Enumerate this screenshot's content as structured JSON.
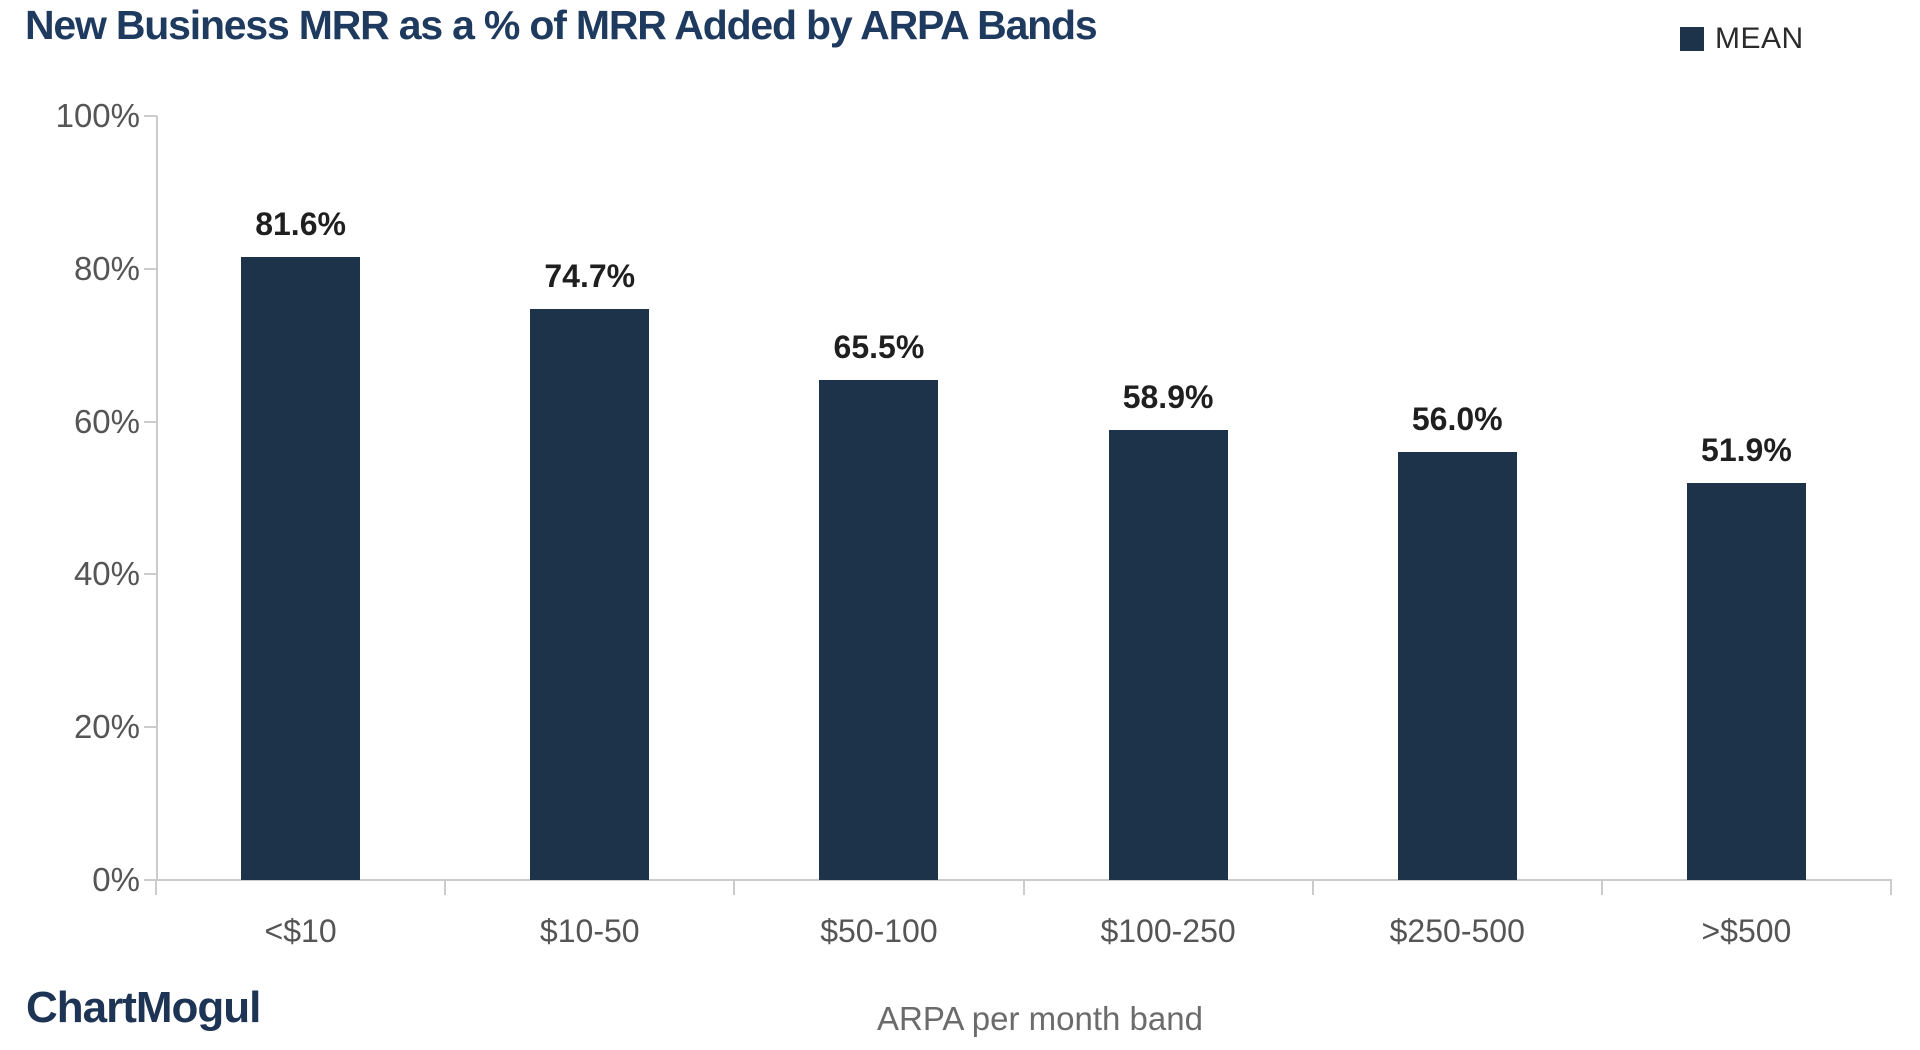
{
  "header": {
    "title": "New Business MRR as a % of MRR Added by ARPA Bands",
    "legend": {
      "label": "MEAN",
      "swatch_color": "#1d3349"
    }
  },
  "chart_data": {
    "type": "bar",
    "title": "New Business MRR as a % of MRR Added by ARPA Bands",
    "series_name": "MEAN",
    "categories": [
      "<$10",
      "$10-50",
      "$50-100",
      "$100-250",
      "$250-500",
      ">$500"
    ],
    "values": [
      81.6,
      74.7,
      65.5,
      58.9,
      56.0,
      51.9
    ],
    "data_labels": [
      "81.6%",
      "74.7%",
      "65.5%",
      "58.9%",
      "56.0%",
      "51.9%"
    ],
    "xlabel": "ARPA per month band",
    "ylabel": "",
    "ylim": [
      0,
      100
    ],
    "yticks": [
      0,
      20,
      40,
      60,
      80,
      100
    ],
    "ytick_labels": [
      "0%",
      "20%",
      "40%",
      "60%",
      "80%",
      "100%"
    ],
    "bar_color": "#1d3349",
    "grid": false,
    "legend_position": "top-right"
  },
  "footer": {
    "brand": "ChartMogul"
  },
  "colors": {
    "title_text": "#1e3a5f",
    "bar": "#1d3349",
    "brand_text": "#1d3454",
    "axis_line": "#cccccc",
    "tick_text": "#555555",
    "value_label_text": "#1f1f1f",
    "background": "#ffffff"
  }
}
